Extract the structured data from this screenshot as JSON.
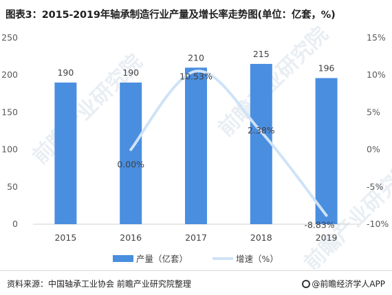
{
  "title": "图表3：2015-2019年轴承制造行业产量及增长率走势图(单位：亿套，%)",
  "footer": {
    "source": "资料来源：中国轴承工业协会 前瞻产业研究院整理",
    "credit": "@前瞻经济学人APP"
  },
  "watermark": "前瞻产业研究院",
  "chart_data": {
    "type": "bar",
    "title": "图表3：2015-2019年轴承制造行业产量及增长率走势图(单位：亿套，%)",
    "categories": [
      "2015",
      "2016",
      "2017",
      "2018",
      "2019"
    ],
    "series": [
      {
        "name": "产量（亿套）",
        "type": "bar",
        "axis": "left",
        "values": [
          190,
          190,
          210,
          215,
          196
        ],
        "labels": [
          "190",
          "190",
          "210",
          "215",
          "196"
        ],
        "color": "#4a8ee0"
      },
      {
        "name": "增速（%）",
        "type": "line",
        "smooth": true,
        "axis": "right",
        "x": [
          "2016",
          "2017",
          "2018",
          "2019"
        ],
        "values": [
          0.0,
          10.53,
          2.38,
          -8.83
        ],
        "labels": [
          "0.00%",
          "10.53%",
          "2.38%",
          "-8.83%"
        ],
        "color": "#cfe3f7"
      }
    ],
    "y_left": {
      "min": 0,
      "max": 250,
      "ticks": [
        0,
        50,
        100,
        150,
        200,
        250
      ]
    },
    "y_right": {
      "min": -10,
      "max": 15,
      "ticks": [
        -10,
        -5,
        0,
        5,
        10,
        15
      ],
      "tick_labels": [
        "-10%",
        "-5%",
        "0%",
        "5%",
        "10%",
        "15%"
      ]
    },
    "grid": false,
    "legend": "bottom"
  }
}
